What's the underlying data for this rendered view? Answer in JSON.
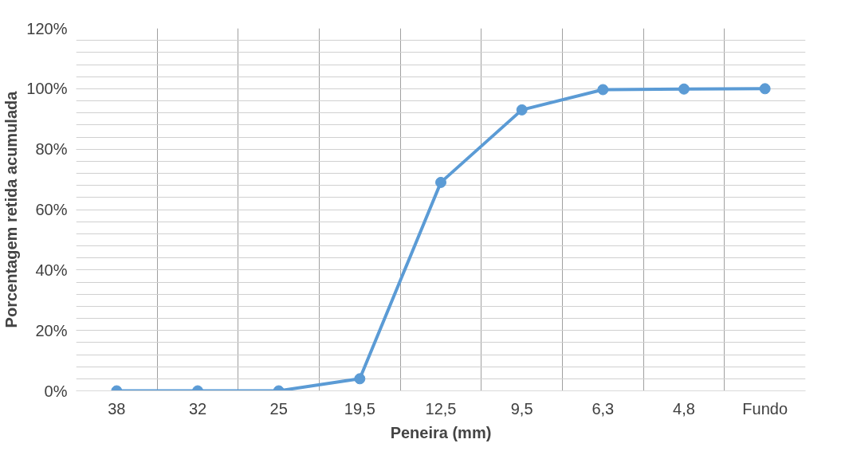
{
  "chart_data": {
    "type": "line",
    "xlabel": "Peneira (mm)",
    "ylabel": "Porcentagem retida acumulada",
    "categories": [
      "38",
      "32",
      "25",
      "19,5",
      "12,5",
      "9,5",
      "6,3",
      "4,8",
      "Fundo"
    ],
    "series": [
      {
        "color": "#5b9bd5",
        "values": [
          0,
          0,
          0,
          4,
          69,
          93,
          99.7,
          99.9,
          100
        ]
      }
    ],
    "ylim": [
      0,
      120
    ],
    "yticks": [
      {
        "value": 0,
        "label": "0%"
      },
      {
        "value": 20,
        "label": "20%"
      },
      {
        "value": 40,
        "label": "40%"
      },
      {
        "value": 60,
        "label": "60%"
      },
      {
        "value": 80,
        "label": "80%"
      },
      {
        "value": 100,
        "label": "100%"
      },
      {
        "value": 120,
        "label": "120%"
      }
    ],
    "grid": true,
    "marker": "circle",
    "line_style": "solid"
  }
}
